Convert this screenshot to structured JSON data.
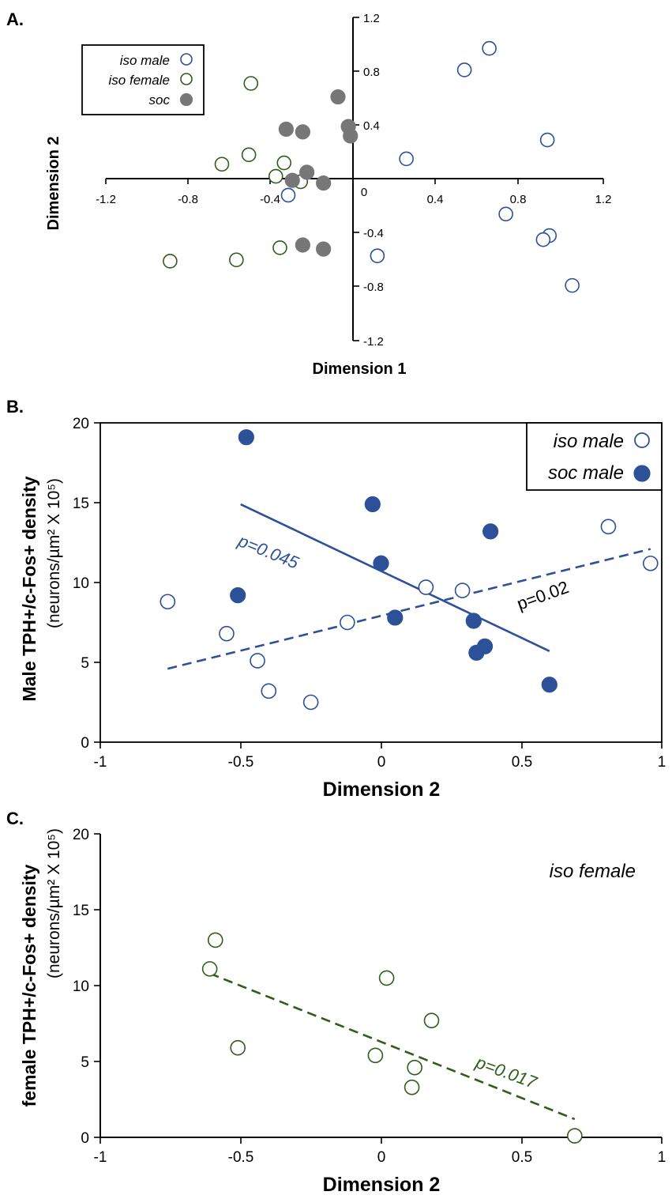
{
  "colors": {
    "male": "#2c5199",
    "female": "#2e5e1a",
    "soc": "#777777",
    "axis": "#000000"
  },
  "chart_data": [
    {
      "id": "A",
      "type": "scatter",
      "panel_label": "A.",
      "xlabel": "Dimension 1",
      "ylabel": "Dimension 2",
      "xlim": [
        -1.2,
        1.2
      ],
      "ylim": [
        -1.2,
        1.2
      ],
      "x_ticks": [
        "-1.2",
        "-0.8",
        "-0.4",
        "0",
        "0.4",
        "0.8",
        "1.2"
      ],
      "y_ticks": [
        "1.2",
        "0.8",
        "0.4",
        "-0.4",
        "-0.8",
        "-1.2"
      ],
      "legend_position": "top-left",
      "series": [
        {
          "name": "iso male",
          "marker": "open",
          "color": "#2c5199",
          "x": [
            0.65,
            0.53,
            0.93,
            0.25,
            0.73,
            0.94,
            0.91,
            0.11,
            1.05,
            -0.32
          ],
          "y": [
            0.97,
            0.81,
            0.29,
            0.15,
            -0.26,
            -0.42,
            -0.45,
            -0.57,
            -0.79,
            -0.12
          ]
        },
        {
          "name": "iso female",
          "marker": "open",
          "color": "#2e5e1a",
          "x": [
            -0.5,
            -0.51,
            -0.64,
            -0.34,
            -0.38,
            -0.26,
            -0.36,
            -0.57,
            -0.89
          ],
          "y": [
            0.71,
            0.18,
            0.11,
            0.12,
            0.02,
            -0.02,
            -0.51,
            -0.6,
            -0.61
          ]
        },
        {
          "name": "soc",
          "marker": "filled",
          "color": "#777777",
          "x": [
            -0.08,
            -0.33,
            -0.25,
            -0.03,
            -0.02,
            -0.23,
            -0.3,
            -0.15,
            -0.25,
            -0.15
          ],
          "y": [
            0.61,
            0.37,
            0.35,
            0.39,
            0.32,
            0.05,
            -0.01,
            -0.03,
            -0.49,
            -0.52
          ]
        }
      ]
    },
    {
      "id": "B",
      "type": "scatter",
      "panel_label": "B.",
      "xlabel": "Dimension 2",
      "ylabel": "Male TPH+/c-Fos+ density",
      "ylabel_sub": "(neurons/µm² X 10⁵)",
      "xlim": [
        -1,
        1
      ],
      "ylim": [
        0,
        20
      ],
      "x_ticks": [
        "-1",
        "-0.5",
        "0",
        "0.5",
        "1"
      ],
      "y_ticks": [
        "0",
        "5",
        "10",
        "15",
        "20"
      ],
      "legend_position": "top-right",
      "series": [
        {
          "name": "iso male",
          "marker": "open",
          "color": "#2c5199",
          "x": [
            -0.76,
            -0.55,
            -0.44,
            -0.4,
            -0.25,
            -0.12,
            0.16,
            0.29,
            0.81,
            0.96
          ],
          "y": [
            8.8,
            6.8,
            5.1,
            3.2,
            2.5,
            7.5,
            9.7,
            9.5,
            13.5,
            11.2
          ]
        },
        {
          "name": "soc male",
          "marker": "filled",
          "color": "#2c5199",
          "x": [
            -0.48,
            -0.51,
            -0.03,
            0.0,
            0.05,
            0.33,
            0.34,
            0.37,
            0.39,
            0.6
          ],
          "y": [
            19.1,
            9.2,
            14.9,
            11.2,
            7.8,
            7.6,
            5.6,
            6.0,
            13.2,
            3.6
          ]
        }
      ],
      "trendlines": [
        {
          "series": "soc male",
          "style": "solid",
          "x": [
            -0.5,
            0.6
          ],
          "y": [
            14.9,
            5.7
          ],
          "label": "p=0.045"
        },
        {
          "series": "iso male",
          "style": "dashed",
          "x": [
            -0.76,
            0.96
          ],
          "y": [
            4.6,
            12.1
          ],
          "label": "p=0.02"
        }
      ]
    },
    {
      "id": "C",
      "type": "scatter",
      "panel_label": "C.",
      "xlabel": "Dimension 2",
      "ylabel": "female TPH+/c-Fos+ density",
      "ylabel_sub": "(neurons/µm² X 10⁵)",
      "xlim": [
        -1,
        1
      ],
      "ylim": [
        0,
        20
      ],
      "x_ticks": [
        "-1",
        "-0.5",
        "0",
        "0.5",
        "1"
      ],
      "y_ticks": [
        "0",
        "5",
        "10",
        "15",
        "20"
      ],
      "annotation": "iso female",
      "series": [
        {
          "name": "iso female",
          "marker": "open",
          "color": "#2e5e1a",
          "x": [
            -0.59,
            -0.61,
            -0.51,
            -0.02,
            0.02,
            0.18,
            0.12,
            0.11,
            0.69
          ],
          "y": [
            13.0,
            11.1,
            5.9,
            5.4,
            10.5,
            7.7,
            4.6,
            3.3,
            0.1
          ]
        }
      ],
      "trendlines": [
        {
          "series": "iso female",
          "style": "dashed",
          "x": [
            -0.61,
            0.69
          ],
          "y": [
            10.8,
            1.2
          ],
          "label": "p=0.017"
        }
      ]
    }
  ]
}
